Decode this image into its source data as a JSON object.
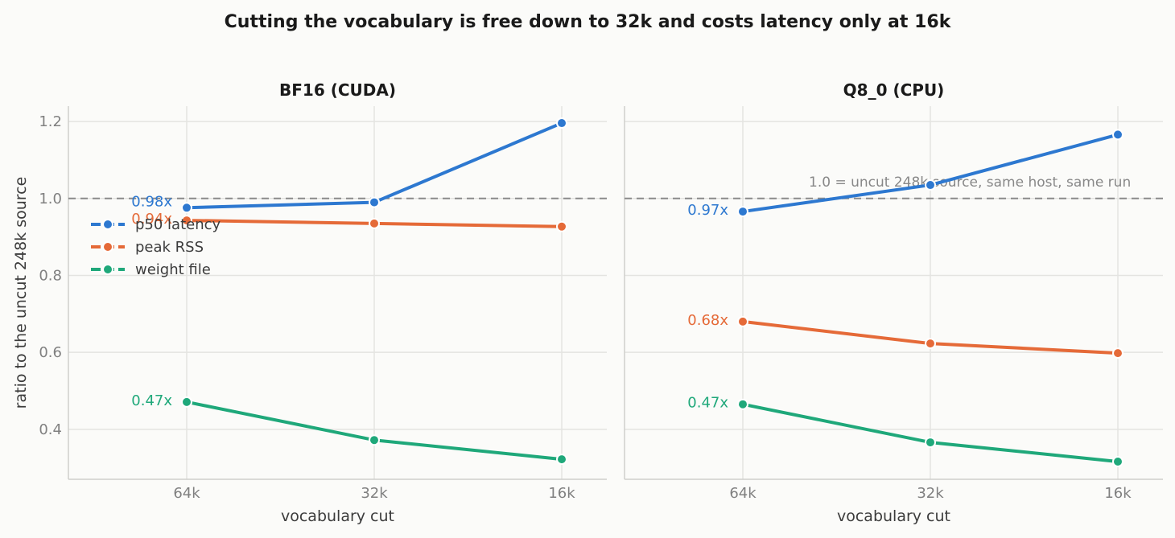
{
  "figure_title": "Cutting the vocabulary is free down to 32k and costs latency only at 16k",
  "y_axis_label": "ratio to the uncut 248k source",
  "chart_data": [
    {
      "type": "line",
      "title": "BF16 (CUDA)",
      "xlabel": "vocabulary cut",
      "ylabel": "ratio to the uncut 248k source",
      "categories": [
        "64k",
        "32k",
        "16k"
      ],
      "ylim": [
        0.27,
        1.24
      ],
      "yticks": [
        0.4,
        0.6,
        0.8,
        1.0,
        1.2
      ],
      "ytick_labels": [
        "0.4",
        "0.6",
        "0.8",
        "1.0",
        "1.2"
      ],
      "grid": true,
      "legend_position": "upper-left",
      "reference_line": {
        "y": 1.0,
        "style": "dashed",
        "label": ""
      },
      "series": [
        {
          "name": "p50 latency",
          "color": "#2d78d0",
          "values": [
            0.976,
            0.99,
            1.196
          ],
          "first_label": "0.98x"
        },
        {
          "name": "peak RSS",
          "color": "#e56a38",
          "values": [
            0.943,
            0.935,
            0.927
          ],
          "first_label": "0.94x"
        },
        {
          "name": "weight file",
          "color": "#1fa87a",
          "values": [
            0.471,
            0.372,
            0.322
          ],
          "first_label": "0.47x"
        }
      ]
    },
    {
      "type": "line",
      "title": "Q8_0 (CPU)",
      "xlabel": "vocabulary cut",
      "ylabel": "",
      "categories": [
        "64k",
        "32k",
        "16k"
      ],
      "ylim": [
        0.27,
        1.24
      ],
      "yticks": [
        0.4,
        0.6,
        0.8,
        1.0,
        1.2
      ],
      "ytick_labels": [],
      "grid": true,
      "legend_position": "none",
      "reference_line": {
        "y": 1.0,
        "style": "dashed",
        "label": "1.0 = uncut 248k source, same host, same run"
      },
      "series": [
        {
          "name": "p50 latency",
          "color": "#2d78d0",
          "values": [
            0.966,
            1.035,
            1.166
          ],
          "first_label": "0.97x"
        },
        {
          "name": "peak RSS",
          "color": "#e56a38",
          "values": [
            0.68,
            0.623,
            0.598
          ],
          "first_label": "0.68x"
        },
        {
          "name": "weight file",
          "color": "#1fa87a",
          "values": [
            0.465,
            0.366,
            0.316
          ],
          "first_label": "0.47x"
        }
      ]
    }
  ]
}
